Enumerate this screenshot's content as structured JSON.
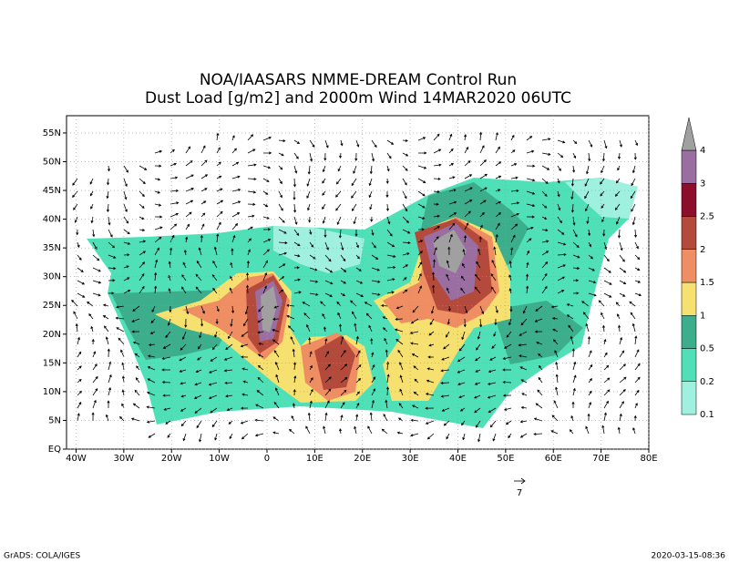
{
  "title": [
    "NOA/IAASARS NMME-DREAM Control Run",
    "Dust Load [g/m2] and 2000m Wind 14MAR2020 06UTC"
  ],
  "map": {
    "xlim": [
      -42,
      80
    ],
    "ylim": [
      0,
      58
    ],
    "xticks": [
      {
        "value": -40,
        "label": "40W"
      },
      {
        "value": -30,
        "label": "30W"
      },
      {
        "value": -20,
        "label": "20W"
      },
      {
        "value": -10,
        "label": "10W"
      },
      0,
      {
        "value": 10,
        "label": "10E"
      },
      {
        "value": 20,
        "label": "20E"
      },
      {
        "value": 30,
        "label": "30E"
      },
      {
        "value": 40,
        "label": "40E"
      },
      {
        "value": 50,
        "label": "50E"
      },
      {
        "value": 60,
        "label": "60E"
      },
      {
        "value": 70,
        "label": "70E"
      },
      {
        "value": 80,
        "label": "80E"
      }
    ],
    "yticks": [
      {
        "value": 0,
        "label": "EQ"
      },
      {
        "value": 5,
        "label": "5N"
      },
      {
        "value": 10,
        "label": "10N"
      },
      {
        "value": 15,
        "label": "15N"
      },
      {
        "value": 20,
        "label": "20N"
      },
      {
        "value": 25,
        "label": "25N"
      },
      {
        "value": 30,
        "label": "30N"
      },
      {
        "value": 35,
        "label": "35N"
      },
      {
        "value": 40,
        "label": "40N"
      },
      {
        "value": 45,
        "label": "45N"
      },
      {
        "value": 50,
        "label": "50N"
      },
      {
        "value": 55,
        "label": "55N"
      }
    ],
    "grid": true
  },
  "colorbar": {
    "levels": [
      0.1,
      0.2,
      0.5,
      1,
      1.5,
      2,
      2.5,
      3,
      4
    ],
    "colors": [
      "#a0f0e0",
      "#50e0b8",
      "#3cae8c",
      "#f6e070",
      "#ee8e62",
      "#b44a3c",
      "#8c0e2c",
      "#9a6ea0",
      "#a0a0a0"
    ]
  },
  "vector_reference": "7",
  "footer": {
    "left": "GrADS: COLA/IGES",
    "right": "2020-03-15-08:36"
  }
}
